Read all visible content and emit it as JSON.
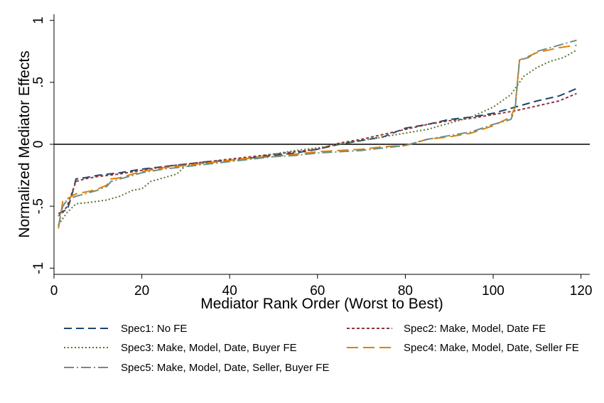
{
  "chart_data": {
    "type": "line",
    "xlabel": "Mediator Rank Order (Worst to Best)",
    "ylabel": "Normalized Mediator Effects",
    "xlim": [
      0,
      122
    ],
    "ylim": [
      -1.05,
      1.05
    ],
    "xticks": [
      0,
      20,
      40,
      60,
      80,
      100,
      120
    ],
    "yticks": [
      -1,
      -0.5,
      0,
      0.5,
      1
    ],
    "xtick_labels": [
      "0",
      "20",
      "40",
      "60",
      "80",
      "100",
      "120"
    ],
    "ytick_labels": [
      "-1",
      "-.5",
      "0",
      ".5",
      "1"
    ],
    "reference_line_y": 0,
    "grid": false,
    "legend_position": "bottom",
    "series": [
      {
        "name": "Spec1: No FE",
        "color": "#1a476f",
        "dash": "long-dash",
        "x": [
          1,
          2,
          3,
          4,
          5,
          7,
          10,
          15,
          20,
          25,
          30,
          35,
          40,
          45,
          50,
          55,
          60,
          65,
          70,
          75,
          80,
          85,
          90,
          95,
          100,
          105,
          110,
          115,
          119
        ],
        "y": [
          -0.56,
          -0.54,
          -0.53,
          -0.42,
          -0.28,
          -0.27,
          -0.25,
          -0.23,
          -0.2,
          -0.18,
          -0.16,
          -0.14,
          -0.13,
          -0.11,
          -0.09,
          -0.07,
          -0.04,
          0.0,
          0.03,
          0.06,
          0.13,
          0.16,
          0.2,
          0.22,
          0.25,
          0.3,
          0.35,
          0.39,
          0.45
        ]
      },
      {
        "name": "Spec2: Make, Model, Date FE",
        "color": "#90353b",
        "dash": "short-dash",
        "x": [
          1,
          2,
          3,
          4,
          5,
          7,
          10,
          15,
          20,
          25,
          30,
          35,
          40,
          45,
          50,
          55,
          60,
          65,
          70,
          75,
          80,
          85,
          90,
          95,
          100,
          105,
          110,
          115,
          119
        ],
        "y": [
          -0.58,
          -0.55,
          -0.5,
          -0.4,
          -0.3,
          -0.28,
          -0.26,
          -0.24,
          -0.21,
          -0.18,
          -0.16,
          -0.14,
          -0.12,
          -0.1,
          -0.08,
          -0.06,
          -0.04,
          0.01,
          0.04,
          0.08,
          0.12,
          0.16,
          0.19,
          0.21,
          0.24,
          0.27,
          0.31,
          0.35,
          0.41
        ]
      },
      {
        "name": "Spec3: Make, Model, Date, Buyer FE",
        "color": "#55752f",
        "dash": "dot",
        "x": [
          1,
          2,
          3,
          5,
          8,
          12,
          15,
          18,
          20,
          22,
          25,
          28,
          30,
          35,
          40,
          45,
          50,
          55,
          60,
          65,
          70,
          75,
          80,
          85,
          90,
          95,
          100,
          104,
          107,
          110,
          113,
          116,
          119
        ],
        "y": [
          -0.65,
          -0.6,
          -0.55,
          -0.48,
          -0.47,
          -0.45,
          -0.42,
          -0.37,
          -0.36,
          -0.3,
          -0.27,
          -0.24,
          -0.17,
          -0.15,
          -0.13,
          -0.11,
          -0.08,
          -0.05,
          -0.03,
          0.0,
          0.03,
          0.06,
          0.09,
          0.12,
          0.17,
          0.22,
          0.3,
          0.4,
          0.55,
          0.62,
          0.67,
          0.7,
          0.76
        ]
      },
      {
        "name": "Spec4: Make, Model, Date, Seller FE",
        "color": "#e37e00",
        "dash": "long-dash-gap",
        "x": [
          1,
          2,
          3,
          5,
          8,
          10,
          12,
          13,
          15,
          20,
          25,
          30,
          35,
          40,
          45,
          50,
          55,
          60,
          65,
          70,
          75,
          80,
          85,
          90,
          95,
          100,
          104,
          105,
          106,
          108,
          110,
          115,
          119
        ],
        "y": [
          -0.68,
          -0.46,
          -0.44,
          -0.4,
          -0.38,
          -0.36,
          -0.33,
          -0.28,
          -0.27,
          -0.22,
          -0.19,
          -0.17,
          -0.15,
          -0.13,
          -0.11,
          -0.1,
          -0.08,
          -0.06,
          -0.05,
          -0.04,
          -0.02,
          -0.01,
          0.04,
          0.06,
          0.09,
          0.15,
          0.22,
          0.3,
          0.68,
          0.71,
          0.74,
          0.78,
          0.8
        ]
      },
      {
        "name": "Spec5: Make, Model, Date, Seller, Buyer FE",
        "color": "#6e8e84",
        "dash": "dash-dot",
        "x": [
          1,
          2,
          3,
          5,
          8,
          10,
          12,
          13,
          15,
          20,
          25,
          30,
          35,
          40,
          45,
          50,
          55,
          60,
          65,
          70,
          75,
          80,
          85,
          90,
          95,
          100,
          104,
          105,
          106,
          108,
          110,
          115,
          119
        ],
        "y": [
          -0.66,
          -0.5,
          -0.45,
          -0.42,
          -0.39,
          -0.37,
          -0.34,
          -0.3,
          -0.28,
          -0.23,
          -0.2,
          -0.18,
          -0.16,
          -0.14,
          -0.12,
          -0.1,
          -0.09,
          -0.07,
          -0.06,
          -0.05,
          -0.03,
          -0.01,
          0.04,
          0.07,
          0.1,
          0.16,
          0.2,
          0.28,
          0.68,
          0.7,
          0.75,
          0.8,
          0.84
        ]
      }
    ]
  }
}
